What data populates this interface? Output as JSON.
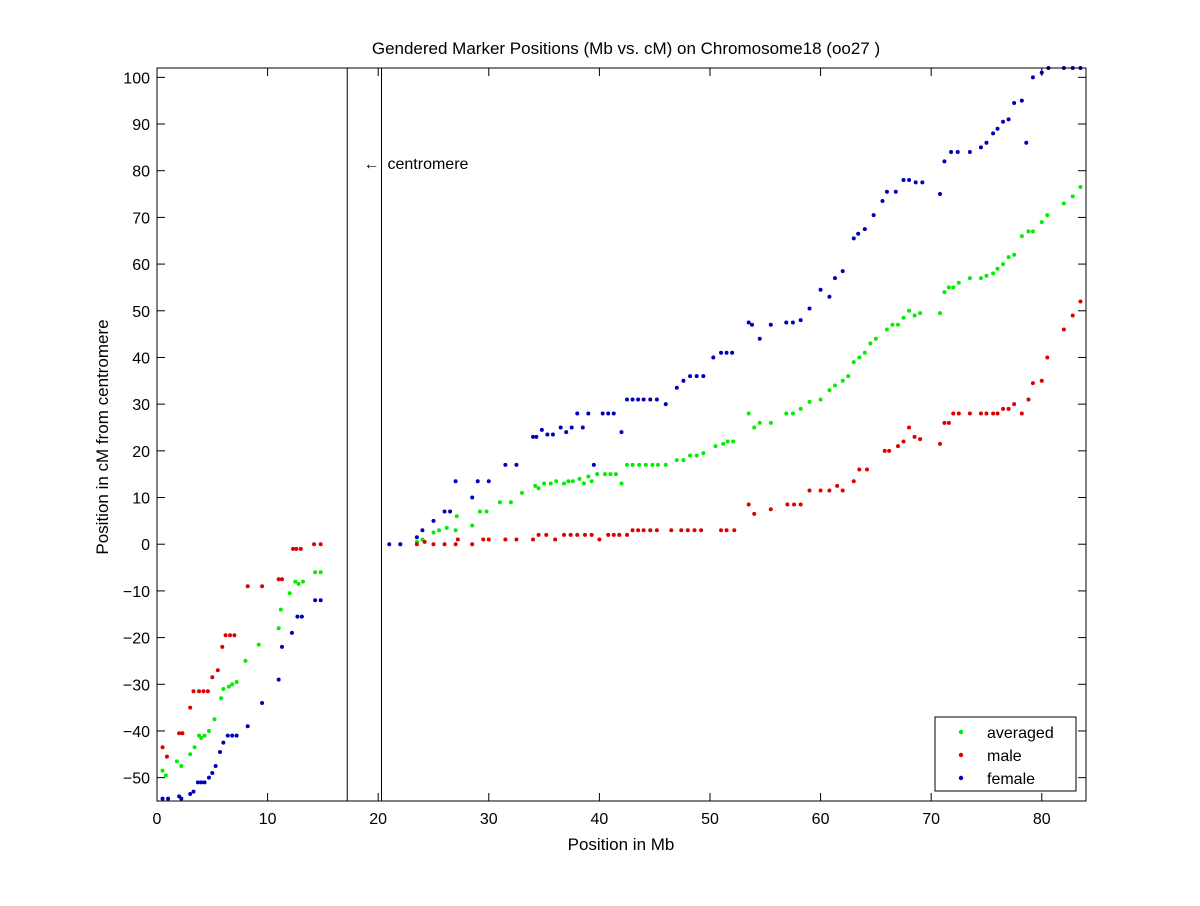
{
  "chart_data": {
    "type": "scatter",
    "title": "Gendered Marker Positions (Mb vs. cM) on Chromosome18 (oo27 )",
    "xlabel": "Position in Mb",
    "ylabel": "Position in cM from centromere",
    "xlim": [
      0,
      84
    ],
    "ylim": [
      -55,
      102
    ],
    "xticks": [
      0,
      10,
      20,
      30,
      40,
      50,
      60,
      70,
      80
    ],
    "yticks": [
      -50,
      -40,
      -30,
      -20,
      -10,
      0,
      10,
      20,
      30,
      40,
      50,
      60,
      70,
      80,
      90,
      100
    ],
    "grid": false,
    "legend_position": "bottom-right",
    "centromere": {
      "label": "centromere",
      "arrow": "←",
      "start_mb": 17.2,
      "end_mb": 20.3
    },
    "colors": {
      "averaged": "#00ee00",
      "male": "#dd0000",
      "female": "#0000bb",
      "axes": "#000000"
    },
    "series": [
      {
        "name": "averaged",
        "x": [
          0.5,
          0.8,
          1.8,
          2.2,
          3.0,
          3.4,
          3.8,
          4.0,
          4.3,
          4.7,
          5.2,
          5.8,
          6.0,
          6.5,
          6.8,
          7.2,
          8.0,
          9.2,
          11.0,
          11.2,
          12.0,
          12.5,
          12.8,
          13.2,
          14.3,
          14.8,
          22.0,
          23.5,
          24.0,
          25.0,
          25.5,
          26.2,
          27.0,
          27.1,
          28.5,
          29.2,
          29.8,
          31.0,
          32.0,
          33.0,
          34.2,
          34.5,
          35.0,
          35.6,
          36.1,
          36.8,
          37.2,
          37.6,
          38.2,
          38.6,
          39.0,
          39.3,
          39.8,
          40.5,
          41.0,
          41.5,
          42.0,
          42.5,
          43.0,
          43.6,
          44.2,
          44.8,
          45.3,
          46.0,
          47.0,
          47.6,
          48.2,
          48.8,
          49.4,
          50.5,
          51.2,
          51.6,
          52.1,
          53.5,
          54.0,
          54.5,
          55.5,
          56.9,
          57.5,
          58.2,
          59.0,
          60.0,
          60.8,
          61.3,
          62.0,
          62.5,
          63.0,
          63.5,
          64.0,
          64.5,
          65.0,
          66.0,
          66.5,
          67.0,
          67.5,
          68.0,
          68.5,
          69.0,
          70.8,
          71.2,
          71.6,
          72.0,
          72.5,
          73.5,
          74.5,
          75.0,
          75.6,
          76.0,
          76.5,
          77.0,
          77.5,
          78.2,
          78.8,
          79.2,
          80.0,
          80.5,
          82.0,
          82.8,
          83.5
        ],
        "y": [
          -48.5,
          -49.5,
          -46.5,
          -47.5,
          -45.0,
          -43.5,
          -41.0,
          -41.5,
          -41.0,
          -40.0,
          -37.5,
          -33.0,
          -31.0,
          -30.5,
          -30.0,
          -29.5,
          -25.0,
          -21.5,
          -18.0,
          -14.0,
          -10.5,
          -8.0,
          -8.5,
          -8.0,
          -6.0,
          -6.0,
          0.0,
          0.5,
          1.0,
          2.5,
          3.0,
          3.5,
          3.0,
          6.0,
          4.0,
          7.0,
          7.0,
          9.0,
          9.0,
          11.0,
          12.5,
          12.0,
          13.0,
          13.0,
          13.5,
          13.0,
          13.5,
          13.5,
          14.0,
          13.0,
          14.5,
          13.5,
          15.0,
          15.0,
          15.0,
          15.0,
          13.0,
          17.0,
          17.0,
          17.0,
          17.0,
          17.0,
          17.0,
          17.0,
          18.0,
          18.0,
          19.0,
          19.0,
          19.5,
          21.0,
          21.5,
          22.0,
          22.0,
          28.0,
          25.0,
          26.0,
          26.0,
          28.0,
          28.0,
          29.0,
          30.5,
          31.0,
          33.0,
          34.0,
          35.0,
          36.0,
          39.0,
          40.0,
          41.0,
          43.0,
          44.0,
          46.0,
          47.0,
          47.0,
          48.5,
          50.0,
          49.0,
          49.5,
          49.5,
          54.0,
          55.0,
          55.0,
          56.0,
          57.0,
          57.0,
          57.5,
          58.0,
          59.0,
          60.0,
          61.5,
          62.0,
          66.0,
          67.0,
          67.0,
          69.0,
          70.5,
          73.0,
          74.5,
          76.5
        ]
      },
      {
        "name": "male",
        "x": [
          0.5,
          0.9,
          2.0,
          2.3,
          3.0,
          3.3,
          3.8,
          4.2,
          4.6,
          5.0,
          5.5,
          5.9,
          6.2,
          6.6,
          7.0,
          8.2,
          9.5,
          11.0,
          11.3,
          12.3,
          12.6,
          13.0,
          14.2,
          14.8,
          23.5,
          24.2,
          25.0,
          26.0,
          27.0,
          27.2,
          28.5,
          29.5,
          30.0,
          31.5,
          32.5,
          34.0,
          34.5,
          35.2,
          36.0,
          36.8,
          37.4,
          38.0,
          38.7,
          39.3,
          40.0,
          40.8,
          41.3,
          41.8,
          42.5,
          43.0,
          43.5,
          44.0,
          44.6,
          45.2,
          46.5,
          47.4,
          48.0,
          48.6,
          49.2,
          51.0,
          51.5,
          52.2,
          53.5,
          54.0,
          55.5,
          57.0,
          57.6,
          58.2,
          59.0,
          60.0,
          60.8,
          61.5,
          62.0,
          63.0,
          63.5,
          64.2,
          65.8,
          66.2,
          67.0,
          67.5,
          68.0,
          68.5,
          69.0,
          70.8,
          71.2,
          71.6,
          72.0,
          72.5,
          73.5,
          74.5,
          75.0,
          75.6,
          76.0,
          76.5,
          77.0,
          77.5,
          78.2,
          78.8,
          79.2,
          80.0,
          80.5,
          82.0,
          82.8,
          83.5
        ],
        "y": [
          -43.5,
          -45.5,
          -40.5,
          -40.5,
          -35.0,
          -31.5,
          -31.5,
          -31.5,
          -31.5,
          -28.5,
          -27.0,
          -22.0,
          -19.5,
          -19.5,
          -19.5,
          -9.0,
          -9.0,
          -7.5,
          -7.5,
          -1.0,
          -1.0,
          -1.0,
          0.0,
          0.0,
          0.0,
          0.5,
          0.0,
          0.0,
          0.0,
          1.0,
          0.0,
          1.0,
          1.0,
          1.0,
          1.0,
          1.0,
          2.0,
          2.0,
          1.0,
          2.0,
          2.0,
          2.0,
          2.0,
          2.0,
          1.0,
          2.0,
          2.0,
          2.0,
          2.0,
          3.0,
          3.0,
          3.0,
          3.0,
          3.0,
          3.0,
          3.0,
          3.0,
          3.0,
          3.0,
          3.0,
          3.0,
          3.0,
          8.5,
          6.5,
          7.5,
          8.5,
          8.5,
          8.5,
          11.5,
          11.5,
          11.5,
          12.5,
          11.5,
          13.5,
          16.0,
          16.0,
          20.0,
          20.0,
          21.0,
          22.0,
          25.0,
          23.0,
          22.5,
          21.5,
          26.0,
          26.0,
          28.0,
          28.0,
          28.0,
          28.0,
          28.0,
          28.0,
          28.0,
          29.0,
          29.0,
          30.0,
          28.0,
          31.0,
          34.5,
          35.0,
          40.0,
          46.0,
          49.0,
          52.0
        ]
      },
      {
        "name": "female",
        "x": [
          0.5,
          1.0,
          2.0,
          2.2,
          3.0,
          3.3,
          3.7,
          4.0,
          4.3,
          4.7,
          5.0,
          5.3,
          5.7,
          6.0,
          6.4,
          6.8,
          7.2,
          8.2,
          9.5,
          11.0,
          11.3,
          12.2,
          12.7,
          13.1,
          14.3,
          14.8,
          21.0,
          22.0,
          23.5,
          24.0,
          25.0,
          26.0,
          26.5,
          27.0,
          28.5,
          29.0,
          30.0,
          31.5,
          32.5,
          34.0,
          34.3,
          34.8,
          35.3,
          35.8,
          36.5,
          37.0,
          37.5,
          38.0,
          38.5,
          39.0,
          39.5,
          40.3,
          40.8,
          41.3,
          42.0,
          42.5,
          43.0,
          43.5,
          44.0,
          44.6,
          45.2,
          46.0,
          47.0,
          47.6,
          48.2,
          48.8,
          49.4,
          50.3,
          51.0,
          51.5,
          52.0,
          53.5,
          53.8,
          54.5,
          55.5,
          56.9,
          57.5,
          58.2,
          59.0,
          60.0,
          60.8,
          61.3,
          62.0,
          63.0,
          63.4,
          64.0,
          64.8,
          65.6,
          66.0,
          66.8,
          67.5,
          68.0,
          68.6,
          69.2,
          70.8,
          71.2,
          71.8,
          72.4,
          73.5,
          74.5,
          75.0,
          75.6,
          76.0,
          76.5,
          77.0,
          77.5,
          78.2,
          78.6,
          79.2,
          80.0,
          80.6,
          82.0,
          82.8,
          83.5
        ],
        "y": [
          -54.5,
          -54.5,
          -54.0,
          -54.5,
          -53.5,
          -53.0,
          -51.0,
          -51.0,
          -51.0,
          -50.0,
          -49.0,
          -47.5,
          -44.5,
          -42.5,
          -41.0,
          -41.0,
          -41.0,
          -39.0,
          -34.0,
          -29.0,
          -22.0,
          -19.0,
          -15.5,
          -15.5,
          -12.0,
          -12.0,
          0.0,
          0.0,
          1.5,
          3.0,
          5.0,
          7.0,
          7.0,
          13.5,
          10.0,
          13.5,
          13.5,
          17.0,
          17.0,
          23.0,
          23.0,
          24.5,
          23.5,
          23.5,
          25.0,
          24.0,
          25.0,
          28.0,
          25.0,
          28.0,
          17.0,
          28.0,
          28.0,
          28.0,
          24.0,
          31.0,
          31.0,
          31.0,
          31.0,
          31.0,
          31.0,
          30.0,
          33.5,
          35.0,
          36.0,
          36.0,
          36.0,
          40.0,
          41.0,
          41.0,
          41.0,
          47.5,
          47.0,
          44.0,
          47.0,
          47.5,
          47.5,
          48.0,
          50.5,
          54.5,
          53.0,
          57.0,
          58.5,
          65.5,
          66.5,
          67.5,
          70.5,
          73.5,
          75.5,
          75.5,
          78.0,
          78.0,
          77.5,
          77.5,
          75.0,
          82.0,
          84.0,
          84.0,
          84.0,
          85.0,
          86.0,
          88.0,
          89.0,
          90.5,
          91.0,
          94.5,
          95.0,
          86.0,
          100.0,
          101.0,
          102.0,
          102.0,
          102.0,
          102.0
        ]
      }
    ]
  }
}
